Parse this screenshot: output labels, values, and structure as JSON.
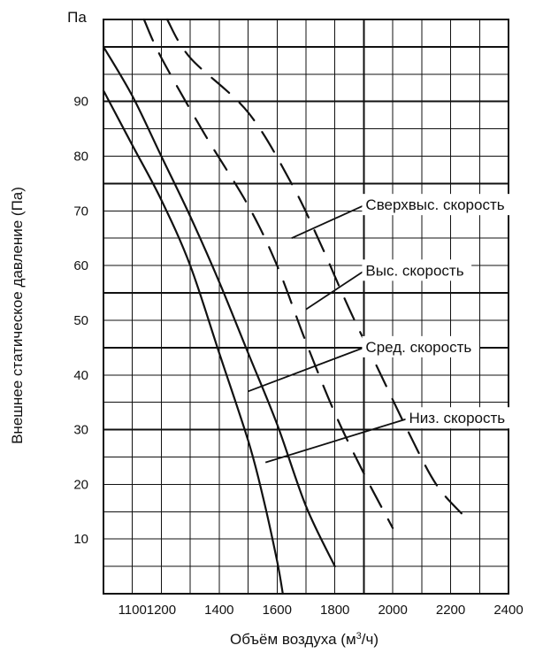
{
  "chart_data": {
    "type": "line",
    "title": "",
    "y_unit_label": "Па",
    "xlabel_prefix": "Объём воздуха (м",
    "xlabel_superscript": "3",
    "xlabel_suffix": "/ч)",
    "ylabel": "Внешнее статическое давление (Па)",
    "xlim": [
      1000,
      2400
    ],
    "ylim": [
      0,
      105
    ],
    "x_ticks": [
      1100,
      1200,
      1400,
      1600,
      1800,
      2000,
      2200,
      2400
    ],
    "x_tick_labels": [
      "1100",
      "1200",
      "1400",
      "1600",
      "1800",
      "2000",
      "2200",
      "2400"
    ],
    "y_ticks": [
      10,
      20,
      30,
      40,
      50,
      60,
      70,
      80,
      90
    ],
    "y_tick_labels": [
      "10",
      "20",
      "30",
      "40",
      "50",
      "60",
      "70",
      "80",
      "90"
    ],
    "grid": true,
    "grid_vertical": [
      1100,
      1200,
      1300,
      1400,
      1500,
      1600,
      1700,
      1800,
      1900,
      2000,
      2100,
      2200,
      2300,
      2400
    ],
    "grid_horizontal": [
      0,
      5,
      10,
      15,
      20,
      25,
      30,
      35,
      40,
      45,
      50,
      55,
      60,
      65,
      70,
      75,
      80,
      85,
      90,
      95,
      100,
      105
    ],
    "grid_major_horizontal": [
      0,
      30,
      45,
      55,
      75,
      90,
      100
    ],
    "grid_major_vertical": [
      1900
    ],
    "series": [
      {
        "name": "Низ. скорость",
        "points": [
          [
            1000,
            92
          ],
          [
            1100,
            82
          ],
          [
            1200,
            72
          ],
          [
            1300,
            60
          ],
          [
            1400,
            44
          ],
          [
            1500,
            28
          ],
          [
            1550,
            18
          ],
          [
            1600,
            6
          ],
          [
            1620,
            0
          ]
        ]
      },
      {
        "name": "Сред. скорость",
        "points": [
          [
            1000,
            100
          ],
          [
            1100,
            91
          ],
          [
            1200,
            80
          ],
          [
            1300,
            69
          ],
          [
            1400,
            57
          ],
          [
            1500,
            44
          ],
          [
            1600,
            31
          ],
          [
            1700,
            16
          ],
          [
            1800,
            5
          ]
        ]
      },
      {
        "name": "Выс. скорость",
        "points": [
          [
            1140,
            105
          ],
          [
            1200,
            98
          ],
          [
            1350,
            84
          ],
          [
            1500,
            71
          ],
          [
            1600,
            60
          ],
          [
            1700,
            46
          ],
          [
            1800,
            33
          ],
          [
            1900,
            22
          ],
          [
            2000,
            12
          ]
        ]
      },
      {
        "name": "Сверхвыс. скорость",
        "points": [
          [
            1220,
            105
          ],
          [
            1300,
            98
          ],
          [
            1500,
            88
          ],
          [
            1650,
            75
          ],
          [
            1750,
            64
          ],
          [
            1850,
            52
          ],
          [
            1950,
            41
          ],
          [
            2050,
            30
          ],
          [
            2150,
            20
          ],
          [
            2250,
            14
          ]
        ]
      }
    ],
    "callouts": [
      {
        "label": "Сверхвыс. скорость",
        "series": "Сверхвыс. скорость",
        "target": [
          1650,
          65
        ],
        "anchor": [
          1900,
          71
        ]
      },
      {
        "label": "Выс. скорость",
        "series": "Выс. скорость",
        "target": [
          1700,
          52
        ],
        "anchor": [
          1900,
          59
        ]
      },
      {
        "label": "Сред. скорость",
        "series": "Сред. скорость",
        "target": [
          1500,
          37
        ],
        "anchor": [
          1900,
          45
        ]
      },
      {
        "label": "Низ. скорость",
        "series": "Низ. скорость",
        "target": [
          1560,
          24
        ],
        "anchor": [
          2050,
          32
        ]
      }
    ]
  }
}
